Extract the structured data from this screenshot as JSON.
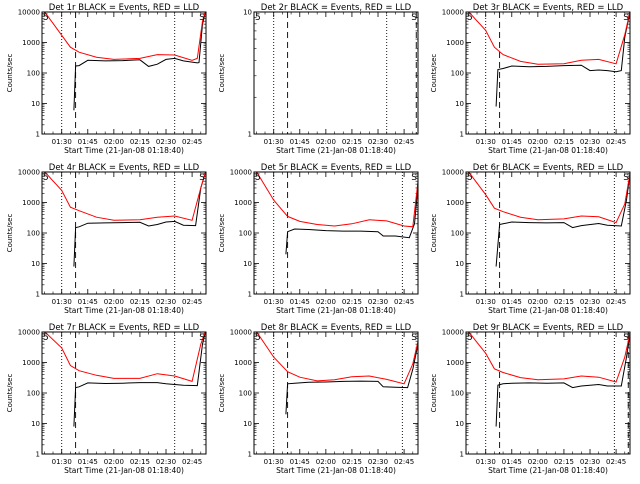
{
  "page": {
    "background": "#ffffff"
  },
  "colors": {
    "events": "#000000",
    "lld": "#ff0000",
    "axes": "#000000"
  },
  "shared": {
    "xlabel": "Start Time (21-Jan-08 01:18:40)",
    "ylabel": "Counts/sec",
    "xrange": [
      "01:18:40",
      "02:53:00"
    ],
    "y_tick_values": [
      1,
      10,
      100,
      1000,
      10000
    ],
    "y_tick_labels": [
      "1",
      "10",
      "100",
      "1000",
      "10000"
    ],
    "x_ticks": [
      {
        "label": "01:30",
        "time": "01:30"
      },
      {
        "label": "01:45",
        "time": "01:45"
      },
      {
        "label": "02:00",
        "time": "02:00"
      },
      {
        "label": "02:15",
        "time": "02:15"
      },
      {
        "label": "02:30",
        "time": "02:30"
      },
      {
        "label": "02:45",
        "time": "02:45"
      }
    ]
  },
  "chart_data": [
    {
      "type": "line",
      "title": "Det 1r BLACK = Events, RED = LLD",
      "yscale": "log",
      "ylim": [
        1,
        10000
      ],
      "corner_markers": {
        "left": "5",
        "right": "S"
      },
      "dotted_lines": [
        "01:30",
        "02:35"
      ],
      "dashed_lines": [
        "01:38",
        "02:53"
      ],
      "series": [
        {
          "name": "Events",
          "color": "#000000",
          "x": [
            "01:37",
            "01:38",
            "01:40",
            "01:45",
            "01:55",
            "02:05",
            "02:15",
            "02:20",
            "02:25",
            "02:30",
            "02:35",
            "02:40",
            "02:48",
            "02:49",
            "02:51",
            "02:53"
          ],
          "y": [
            6,
            170,
            175,
            260,
            250,
            255,
            270,
            165,
            195,
            280,
            300,
            250,
            215,
            220,
            4000,
            12000
          ]
        },
        {
          "name": "LLD",
          "color": "#ff0000",
          "x": [
            "01:20",
            "01:35",
            "01:40",
            "01:50",
            "02:00",
            "02:15",
            "02:25",
            "02:35",
            "02:45",
            "02:48",
            "02:51",
            "02:53"
          ],
          "y": [
            10500,
            700,
            480,
            330,
            280,
            300,
            400,
            390,
            260,
            300,
            5000,
            12000
          ]
        }
      ]
    },
    {
      "type": "line",
      "title": "Det 2r BLACK = Events, RED = LLD",
      "yscale": "log",
      "ylim": [
        1,
        10
      ],
      "corner_markers": {
        "left": "5",
        "right": "S"
      },
      "dotted_lines": [
        "01:30",
        "02:35"
      ],
      "dashed_lines": [
        "01:38",
        "02:52",
        "02:53"
      ],
      "series": []
    },
    {
      "type": "line",
      "title": "Det 3r BLACK = Events, RED = LLD",
      "yscale": "log",
      "ylim": [
        1,
        10000
      ],
      "corner_markers": {
        "left": "5",
        "right": "S"
      },
      "dotted_lines": [
        "01:30",
        "02:44"
      ],
      "dashed_lines": [
        "01:38",
        "02:53"
      ],
      "series": [
        {
          "name": "Events",
          "color": "#000000",
          "x": [
            "01:36",
            "01:37",
            "01:40",
            "01:45",
            "01:55",
            "02:05",
            "02:15",
            "02:25",
            "02:30",
            "02:35",
            "02:40",
            "02:45",
            "02:48",
            "02:50",
            "02:53"
          ],
          "y": [
            8,
            130,
            140,
            170,
            160,
            165,
            175,
            180,
            120,
            125,
            120,
            110,
            120,
            1500,
            10000
          ]
        },
        {
          "name": "LLD",
          "color": "#ff0000",
          "x": [
            "01:20",
            "01:30",
            "01:35",
            "01:40",
            "01:50",
            "02:00",
            "02:15",
            "02:25",
            "02:35",
            "02:45",
            "02:50",
            "02:53"
          ],
          "y": [
            10500,
            2500,
            700,
            400,
            240,
            195,
            200,
            260,
            280,
            200,
            1800,
            10500
          ]
        }
      ]
    },
    {
      "type": "line",
      "title": "Det 4r BLACK = Events, RED = LLD",
      "yscale": "log",
      "ylim": [
        1,
        10000
      ],
      "corner_markers": {
        "left": "5",
        "right": "S"
      },
      "dotted_lines": [
        "01:30",
        "02:35"
      ],
      "dashed_lines": [
        "01:38",
        "02:53"
      ],
      "series": [
        {
          "name": "Events",
          "color": "#000000",
          "x": [
            "01:37",
            "01:38",
            "01:40",
            "01:45",
            "01:55",
            "02:05",
            "02:15",
            "02:20",
            "02:25",
            "02:30",
            "02:35",
            "02:40",
            "02:47",
            "02:50",
            "02:53"
          ],
          "y": [
            8,
            150,
            160,
            210,
            215,
            220,
            225,
            170,
            190,
            230,
            240,
            180,
            175,
            3000,
            11000
          ]
        },
        {
          "name": "LLD",
          "color": "#ff0000",
          "x": [
            "01:20",
            "01:30",
            "01:35",
            "01:40",
            "01:50",
            "02:00",
            "02:15",
            "02:25",
            "02:35",
            "02:45",
            "02:50",
            "02:53"
          ],
          "y": [
            10500,
            2500,
            700,
            540,
            330,
            260,
            270,
            330,
            360,
            260,
            3000,
            11000
          ]
        }
      ]
    },
    {
      "type": "line",
      "title": "Det 5r BLACK = Events, RED = LLD",
      "yscale": "log",
      "ylim": [
        1,
        10000
      ],
      "corner_markers": {
        "left": "5",
        "right": "S"
      },
      "dotted_lines": [
        "01:30",
        "02:44"
      ],
      "dashed_lines": [
        "01:38",
        "02:53"
      ],
      "series": [
        {
          "name": "Events",
          "color": "#000000",
          "x": [
            "01:37",
            "01:38",
            "01:42",
            "01:50",
            "02:00",
            "02:10",
            "02:20",
            "02:30",
            "02:33",
            "02:40",
            "02:48",
            "02:51",
            "02:53"
          ],
          "y": [
            20,
            110,
            135,
            130,
            120,
            115,
            115,
            110,
            80,
            80,
            70,
            200,
            3500
          ]
        },
        {
          "name": "LLD",
          "color": "#ff0000",
          "x": [
            "01:20",
            "01:30",
            "01:38",
            "01:45",
            "01:55",
            "02:05",
            "02:15",
            "02:25",
            "02:35",
            "02:45",
            "02:50",
            "02:53"
          ],
          "y": [
            10500,
            1200,
            350,
            240,
            190,
            170,
            200,
            270,
            250,
            170,
            160,
            5000
          ]
        }
      ]
    },
    {
      "type": "line",
      "title": "Det 6r BLACK = Events, RED = LLD",
      "yscale": "log",
      "ylim": [
        1,
        10000
      ],
      "corner_markers": {
        "left": "5",
        "right": "S"
      },
      "dotted_lines": [
        "01:30",
        "02:44"
      ],
      "dashed_lines": [
        "01:38",
        "02:53"
      ],
      "series": [
        {
          "name": "Events",
          "color": "#000000",
          "x": [
            "01:36",
            "01:38",
            "01:40",
            "01:45",
            "01:55",
            "02:05",
            "02:15",
            "02:20",
            "02:25",
            "02:35",
            "02:40",
            "02:48",
            "02:51",
            "02:53"
          ],
          "y": [
            8,
            190,
            200,
            230,
            220,
            215,
            220,
            150,
            175,
            205,
            180,
            170,
            1200,
            9000
          ]
        },
        {
          "name": "LLD",
          "color": "#ff0000",
          "x": [
            "01:20",
            "01:30",
            "01:35",
            "01:40",
            "01:50",
            "02:00",
            "02:15",
            "02:25",
            "02:35",
            "02:45",
            "02:50",
            "02:53"
          ],
          "y": [
            10500,
            1800,
            650,
            500,
            330,
            270,
            290,
            360,
            340,
            220,
            900,
            9000
          ]
        }
      ]
    },
    {
      "type": "line",
      "title": "Det 7r BLACK = Events, RED = LLD",
      "yscale": "log",
      "ylim": [
        1,
        10000
      ],
      "corner_markers": {
        "left": "5",
        "right": "S"
      },
      "dotted_lines": [
        "01:30",
        "02:35"
      ],
      "dashed_lines": [
        "01:38",
        "02:53"
      ],
      "series": [
        {
          "name": "Events",
          "color": "#000000",
          "x": [
            "01:37",
            "01:38",
            "01:40",
            "01:45",
            "01:55",
            "02:05",
            "02:15",
            "02:25",
            "02:30",
            "02:35",
            "02:40",
            "02:48",
            "02:51",
            "02:53"
          ],
          "y": [
            8,
            150,
            160,
            215,
            205,
            210,
            220,
            220,
            200,
            190,
            180,
            175,
            4000,
            12000
          ]
        },
        {
          "name": "LLD",
          "color": "#ff0000",
          "x": [
            "01:20",
            "01:30",
            "01:35",
            "01:40",
            "01:50",
            "02:00",
            "02:15",
            "02:25",
            "02:35",
            "02:45",
            "02:50",
            "02:53"
          ],
          "y": [
            10500,
            3000,
            800,
            540,
            380,
            300,
            300,
            430,
            360,
            240,
            4000,
            12000
          ]
        }
      ]
    },
    {
      "type": "line",
      "title": "Det 8r BLACK = Events, RED = LLD",
      "yscale": "log",
      "ylim": [
        1,
        10000
      ],
      "corner_markers": {
        "left": "5",
        "right": "S"
      },
      "dotted_lines": [
        "01:30",
        "02:44"
      ],
      "dashed_lines": [
        "01:38",
        "02:53"
      ],
      "series": [
        {
          "name": "Events",
          "color": "#000000",
          "x": [
            "01:37",
            "01:38",
            "01:42",
            "01:50",
            "02:00",
            "02:10",
            "02:20",
            "02:30",
            "02:33",
            "02:40",
            "02:47",
            "02:50",
            "02:53"
          ],
          "y": [
            20,
            200,
            210,
            225,
            230,
            240,
            245,
            240,
            160,
            155,
            150,
            600,
            4000
          ]
        },
        {
          "name": "LLD",
          "color": "#ff0000",
          "x": [
            "01:20",
            "01:30",
            "01:38",
            "01:45",
            "01:55",
            "02:05",
            "02:15",
            "02:25",
            "02:35",
            "02:45",
            "02:50",
            "02:53"
          ],
          "y": [
            10500,
            1500,
            500,
            330,
            250,
            270,
            340,
            360,
            280,
            200,
            900,
            5000
          ]
        }
      ]
    },
    {
      "type": "line",
      "title": "Det 9r BLACK = Events, RED = LLD",
      "yscale": "log",
      "ylim": [
        1,
        10000
      ],
      "corner_markers": {
        "left": "5",
        "right": "S"
      },
      "dotted_lines": [
        "01:30",
        "02:44"
      ],
      "dashed_lines": [
        "01:38",
        "02:52",
        "02:53"
      ],
      "series": [
        {
          "name": "Events",
          "color": "#000000",
          "x": [
            "01:36",
            "01:37",
            "01:40",
            "01:45",
            "01:55",
            "02:05",
            "02:15",
            "02:20",
            "02:25",
            "02:35",
            "02:40",
            "02:48",
            "02:51",
            "02:53"
          ],
          "y": [
            8,
            180,
            200,
            210,
            215,
            210,
            215,
            150,
            170,
            190,
            170,
            170,
            1500,
            9000
          ]
        },
        {
          "name": "LLD",
          "color": "#ff0000",
          "x": [
            "01:20",
            "01:30",
            "01:35",
            "01:40",
            "01:50",
            "02:00",
            "02:15",
            "02:25",
            "02:35",
            "02:45",
            "02:50",
            "02:53"
          ],
          "y": [
            10500,
            2000,
            620,
            470,
            320,
            270,
            290,
            360,
            330,
            230,
            1500,
            9000
          ]
        }
      ]
    }
  ]
}
